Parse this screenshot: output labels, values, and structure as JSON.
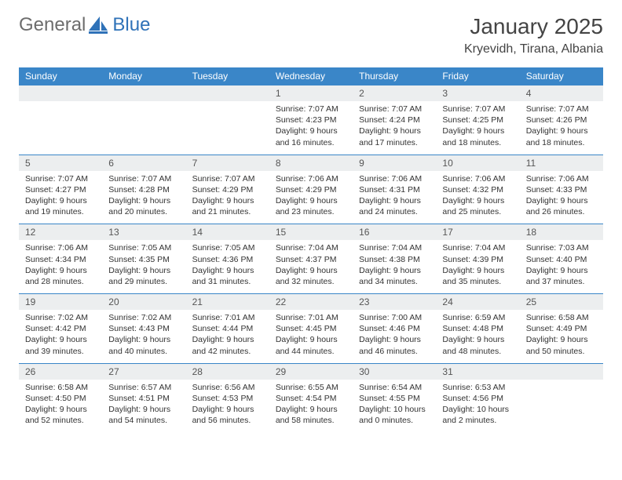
{
  "brand": {
    "part1": "General",
    "part2": "Blue"
  },
  "header": {
    "title": "January 2025",
    "location": "Kryevidh, Tirana, Albania"
  },
  "colors": {
    "header_bg": "#3a86c8",
    "daynum_bg": "#eceeef",
    "rule": "#3a86c8"
  },
  "day_names": [
    "Sunday",
    "Monday",
    "Tuesday",
    "Wednesday",
    "Thursday",
    "Friday",
    "Saturday"
  ],
  "weeks": [
    [
      null,
      null,
      null,
      {
        "n": "1",
        "sunrise": "7:07 AM",
        "sunset": "4:23 PM",
        "dl_h": "9",
        "dl_m": "16"
      },
      {
        "n": "2",
        "sunrise": "7:07 AM",
        "sunset": "4:24 PM",
        "dl_h": "9",
        "dl_m": "17"
      },
      {
        "n": "3",
        "sunrise": "7:07 AM",
        "sunset": "4:25 PM",
        "dl_h": "9",
        "dl_m": "18"
      },
      {
        "n": "4",
        "sunrise": "7:07 AM",
        "sunset": "4:26 PM",
        "dl_h": "9",
        "dl_m": "18"
      }
    ],
    [
      {
        "n": "5",
        "sunrise": "7:07 AM",
        "sunset": "4:27 PM",
        "dl_h": "9",
        "dl_m": "19"
      },
      {
        "n": "6",
        "sunrise": "7:07 AM",
        "sunset": "4:28 PM",
        "dl_h": "9",
        "dl_m": "20"
      },
      {
        "n": "7",
        "sunrise": "7:07 AM",
        "sunset": "4:29 PM",
        "dl_h": "9",
        "dl_m": "21"
      },
      {
        "n": "8",
        "sunrise": "7:06 AM",
        "sunset": "4:29 PM",
        "dl_h": "9",
        "dl_m": "23"
      },
      {
        "n": "9",
        "sunrise": "7:06 AM",
        "sunset": "4:31 PM",
        "dl_h": "9",
        "dl_m": "24"
      },
      {
        "n": "10",
        "sunrise": "7:06 AM",
        "sunset": "4:32 PM",
        "dl_h": "9",
        "dl_m": "25"
      },
      {
        "n": "11",
        "sunrise": "7:06 AM",
        "sunset": "4:33 PM",
        "dl_h": "9",
        "dl_m": "26"
      }
    ],
    [
      {
        "n": "12",
        "sunrise": "7:06 AM",
        "sunset": "4:34 PM",
        "dl_h": "9",
        "dl_m": "28"
      },
      {
        "n": "13",
        "sunrise": "7:05 AM",
        "sunset": "4:35 PM",
        "dl_h": "9",
        "dl_m": "29"
      },
      {
        "n": "14",
        "sunrise": "7:05 AM",
        "sunset": "4:36 PM",
        "dl_h": "9",
        "dl_m": "31"
      },
      {
        "n": "15",
        "sunrise": "7:04 AM",
        "sunset": "4:37 PM",
        "dl_h": "9",
        "dl_m": "32"
      },
      {
        "n": "16",
        "sunrise": "7:04 AM",
        "sunset": "4:38 PM",
        "dl_h": "9",
        "dl_m": "34"
      },
      {
        "n": "17",
        "sunrise": "7:04 AM",
        "sunset": "4:39 PM",
        "dl_h": "9",
        "dl_m": "35"
      },
      {
        "n": "18",
        "sunrise": "7:03 AM",
        "sunset": "4:40 PM",
        "dl_h": "9",
        "dl_m": "37"
      }
    ],
    [
      {
        "n": "19",
        "sunrise": "7:02 AM",
        "sunset": "4:42 PM",
        "dl_h": "9",
        "dl_m": "39"
      },
      {
        "n": "20",
        "sunrise": "7:02 AM",
        "sunset": "4:43 PM",
        "dl_h": "9",
        "dl_m": "40"
      },
      {
        "n": "21",
        "sunrise": "7:01 AM",
        "sunset": "4:44 PM",
        "dl_h": "9",
        "dl_m": "42"
      },
      {
        "n": "22",
        "sunrise": "7:01 AM",
        "sunset": "4:45 PM",
        "dl_h": "9",
        "dl_m": "44"
      },
      {
        "n": "23",
        "sunrise": "7:00 AM",
        "sunset": "4:46 PM",
        "dl_h": "9",
        "dl_m": "46"
      },
      {
        "n": "24",
        "sunrise": "6:59 AM",
        "sunset": "4:48 PM",
        "dl_h": "9",
        "dl_m": "48"
      },
      {
        "n": "25",
        "sunrise": "6:58 AM",
        "sunset": "4:49 PM",
        "dl_h": "9",
        "dl_m": "50"
      }
    ],
    [
      {
        "n": "26",
        "sunrise": "6:58 AM",
        "sunset": "4:50 PM",
        "dl_h": "9",
        "dl_m": "52"
      },
      {
        "n": "27",
        "sunrise": "6:57 AM",
        "sunset": "4:51 PM",
        "dl_h": "9",
        "dl_m": "54"
      },
      {
        "n": "28",
        "sunrise": "6:56 AM",
        "sunset": "4:53 PM",
        "dl_h": "9",
        "dl_m": "56"
      },
      {
        "n": "29",
        "sunrise": "6:55 AM",
        "sunset": "4:54 PM",
        "dl_h": "9",
        "dl_m": "58"
      },
      {
        "n": "30",
        "sunrise": "6:54 AM",
        "sunset": "4:55 PM",
        "dl_h": "10",
        "dl_m": "0"
      },
      {
        "n": "31",
        "sunrise": "6:53 AM",
        "sunset": "4:56 PM",
        "dl_h": "10",
        "dl_m": "2"
      },
      null
    ]
  ]
}
